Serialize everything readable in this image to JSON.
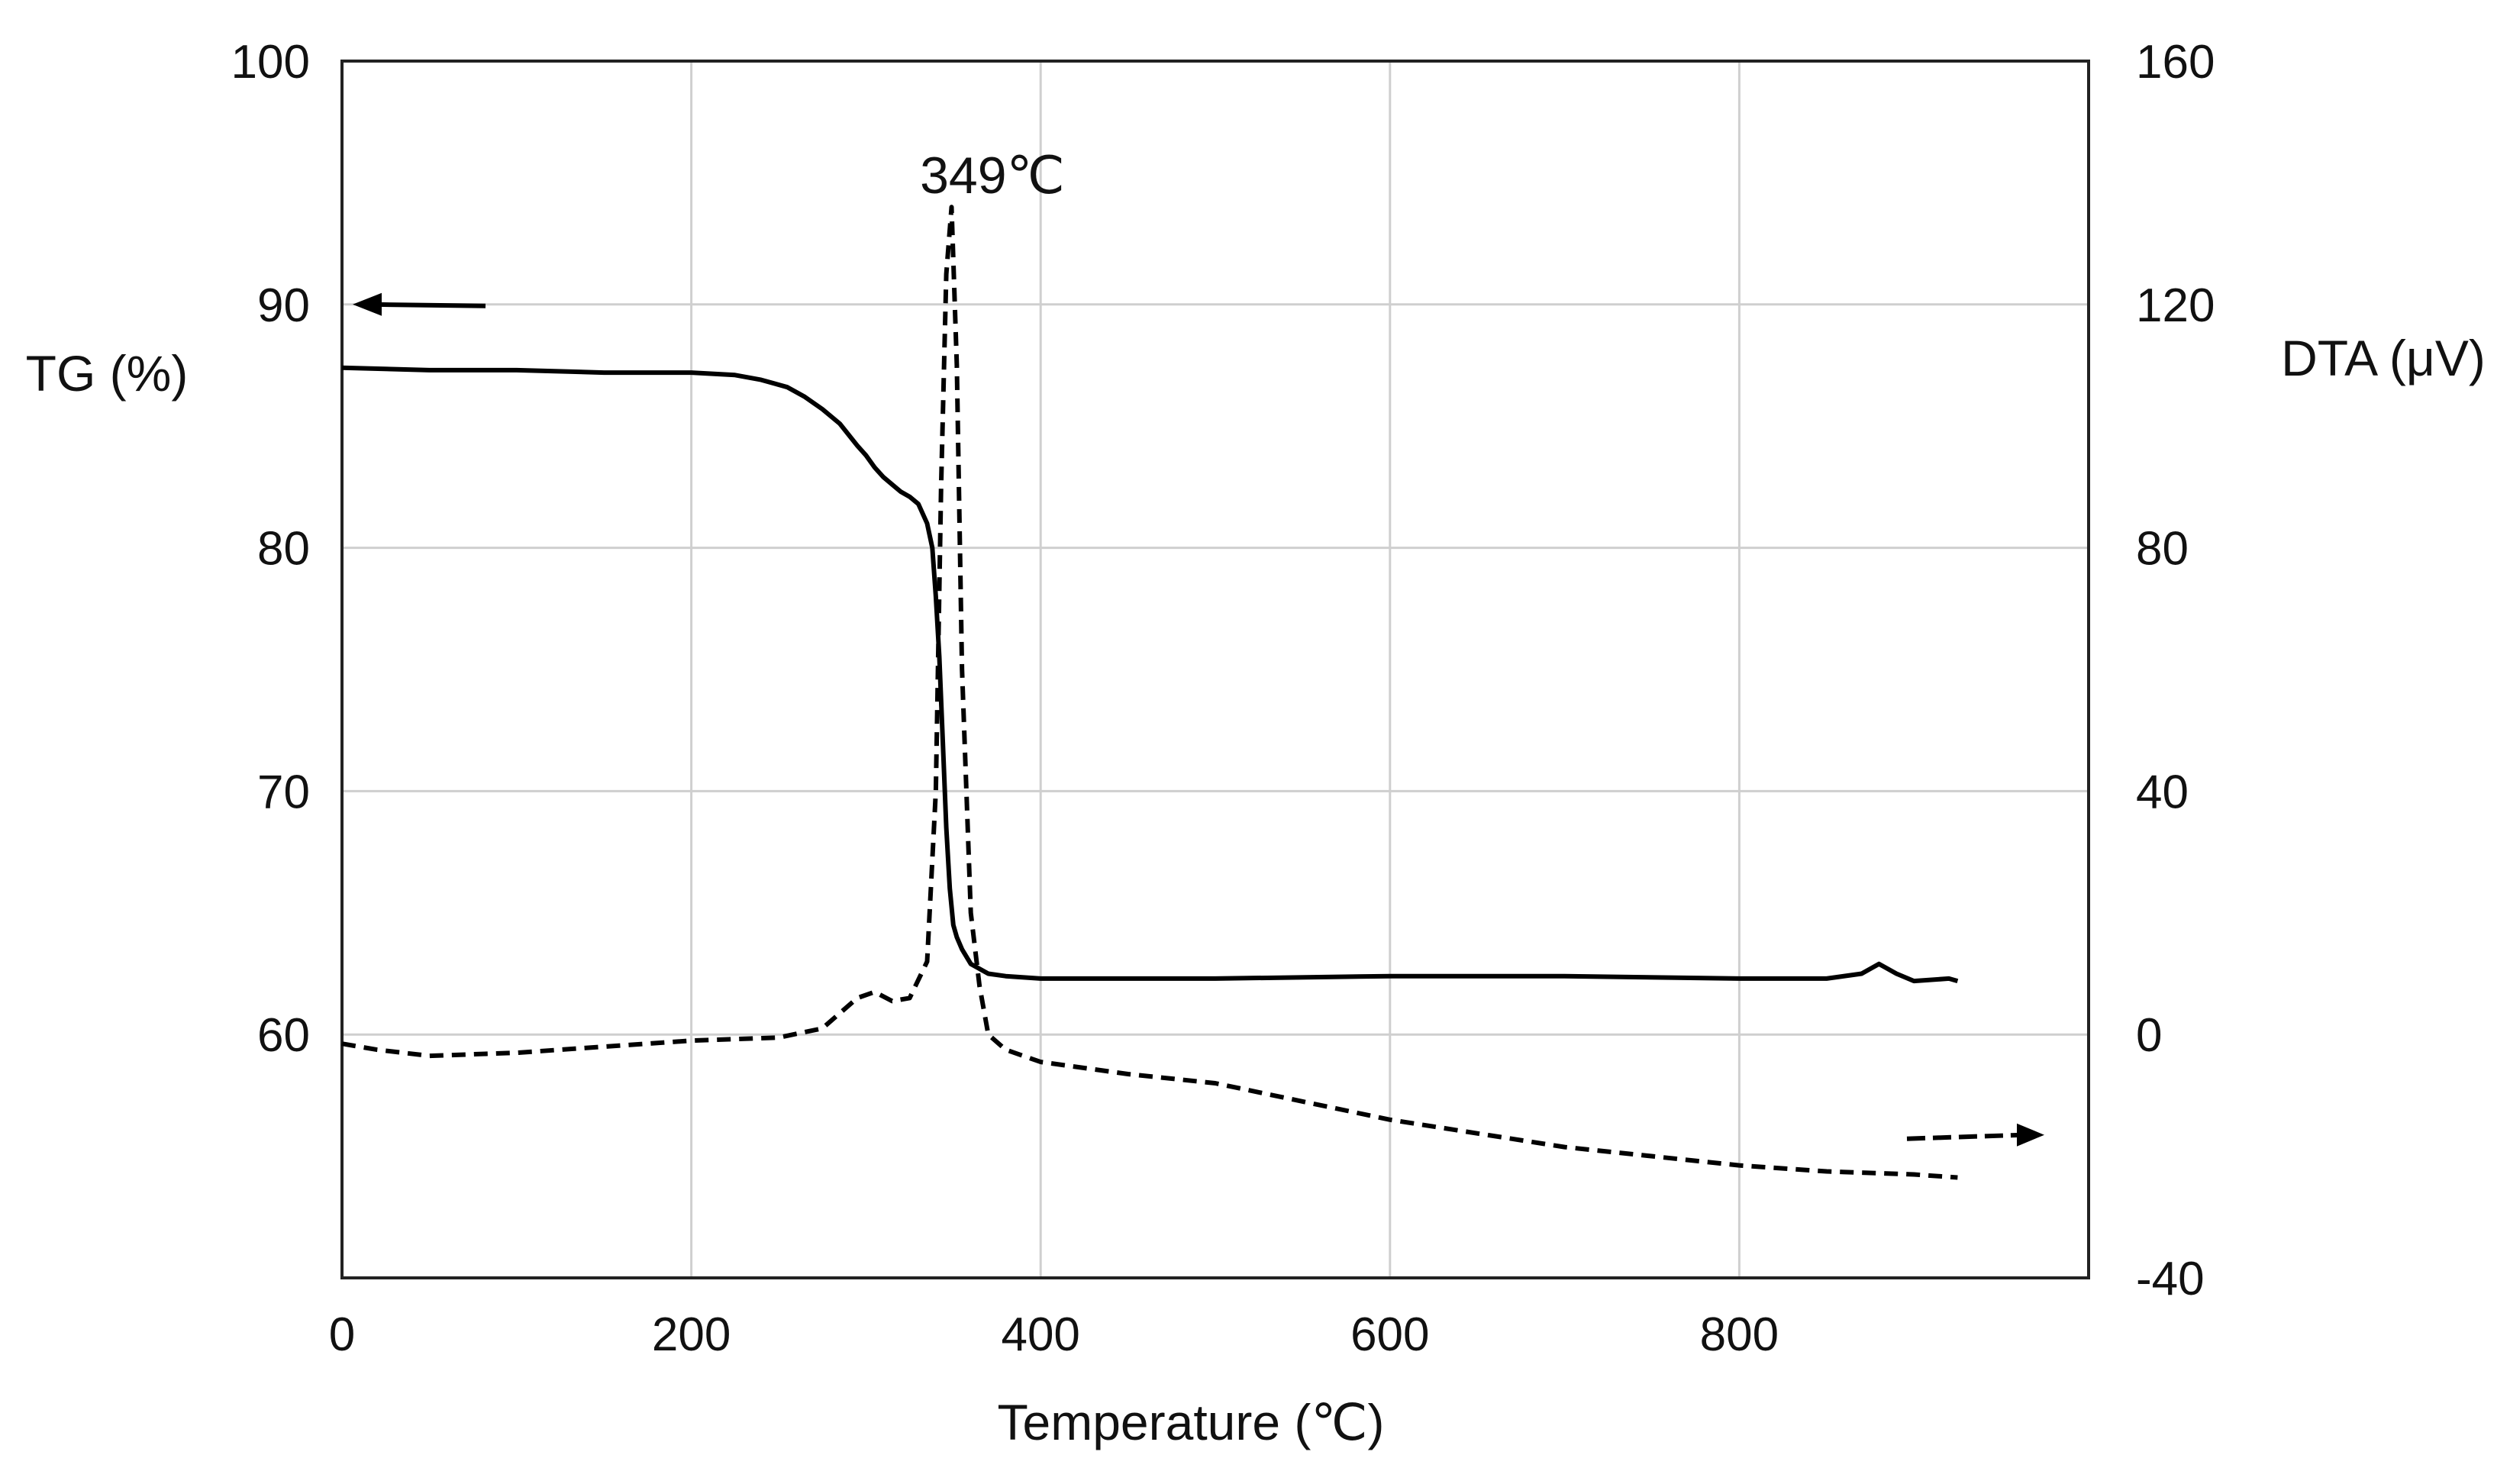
{
  "chart_data": {
    "type": "line",
    "title": "",
    "xlabel": "Temperature (℃)",
    "ylabel_left": "TG (%)",
    "ylabel_right": "DTA (μV)",
    "xlim": [
      0,
      1000
    ],
    "ylim_left": [
      50,
      100
    ],
    "ylim_right": [
      -40,
      160
    ],
    "x_ticks": [
      "0",
      "200",
      "400",
      "600",
      "800"
    ],
    "y_left_ticks": [
      "60",
      "70",
      "80",
      "90",
      "100"
    ],
    "y_right_ticks": [
      "-40",
      "0",
      "40",
      "80",
      "120",
      "160"
    ],
    "grid": true,
    "legend": "none",
    "annotations": [
      {
        "text": "349℃",
        "x": 349,
        "y_right": 140
      }
    ],
    "series": [
      {
        "axis": "left",
        "style": "solid",
        "x": [
          0,
          50,
          100,
          150,
          200,
          225,
          240,
          255,
          265,
          275,
          285,
          295,
          300,
          305,
          310,
          315,
          320,
          325,
          330,
          335,
          338,
          340,
          342,
          344,
          346,
          348,
          350,
          352,
          355,
          360,
          370,
          380,
          400,
          450,
          500,
          600,
          700,
          800,
          850,
          870,
          880,
          890,
          900,
          920,
          925
        ],
        "y": [
          87.4,
          87.3,
          87.3,
          87.2,
          87.2,
          87.1,
          86.9,
          86.6,
          86.2,
          85.7,
          85.1,
          84.2,
          83.8,
          83.3,
          82.9,
          82.6,
          82.3,
          82.1,
          81.8,
          81.0,
          80.0,
          78.0,
          75.5,
          72.0,
          68.5,
          66.0,
          64.5,
          64.0,
          63.5,
          62.9,
          62.5,
          62.4,
          62.3,
          62.3,
          62.3,
          62.4,
          62.4,
          62.3,
          62.3,
          62.5,
          62.9,
          62.5,
          62.2,
          62.3,
          62.2
        ],
        "arrow_direction": "left"
      },
      {
        "axis": "right",
        "style": "dashed",
        "x": [
          0,
          20,
          50,
          100,
          150,
          200,
          250,
          275,
          285,
          295,
          305,
          315,
          325,
          335,
          340,
          343,
          346,
          349,
          352,
          355,
          360,
          365,
          370,
          380,
          400,
          450,
          500,
          550,
          600,
          700,
          800,
          850,
          900,
          925
        ],
        "y": [
          -1.5,
          -2.5,
          -3.5,
          -3.0,
          -2.0,
          -1.0,
          -0.5,
          1.0,
          3.5,
          6.0,
          7.0,
          5.5,
          6.0,
          12.0,
          40.0,
          90.0,
          125.0,
          136.0,
          110.0,
          60.0,
          20.0,
          8.0,
          0.0,
          -2.5,
          -4.5,
          -6.5,
          -8.0,
          -11.0,
          -14.0,
          -18.5,
          -21.5,
          -22.5,
          -23.0,
          -23.5
        ],
        "arrow_direction": "right"
      }
    ]
  }
}
